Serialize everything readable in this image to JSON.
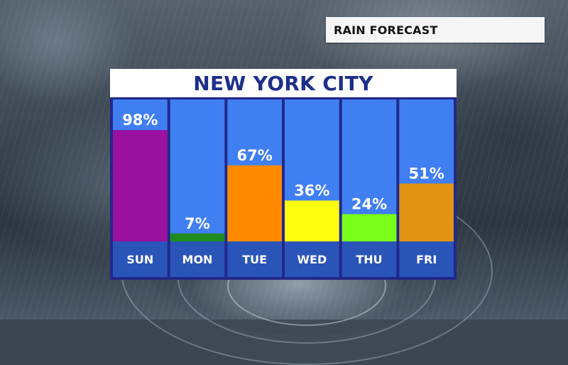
{
  "header": {
    "label": "RAIN FORECAST"
  },
  "chart_data": {
    "type": "bar",
    "title": "NEW YORK CITY",
    "categories": [
      "SUN",
      "MON",
      "TUE",
      "WED",
      "THU",
      "FRI"
    ],
    "values": [
      98,
      7,
      67,
      36,
      24,
      51
    ],
    "value_labels": [
      "98%",
      "7%",
      "67%",
      "36%",
      "24%",
      "51%"
    ],
    "unit": "%",
    "ylim": [
      0,
      100
    ],
    "grid": false,
    "legend": "none",
    "colors": {
      "column_background": "#3f7ff2",
      "label_band": "#2a55b8",
      "divider": "#1c2a7a",
      "bars": [
        "#99119e",
        "#1f8a1f",
        "#ff8a00",
        "#ffff0f",
        "#7aff1a",
        "#e19413"
      ]
    }
  }
}
